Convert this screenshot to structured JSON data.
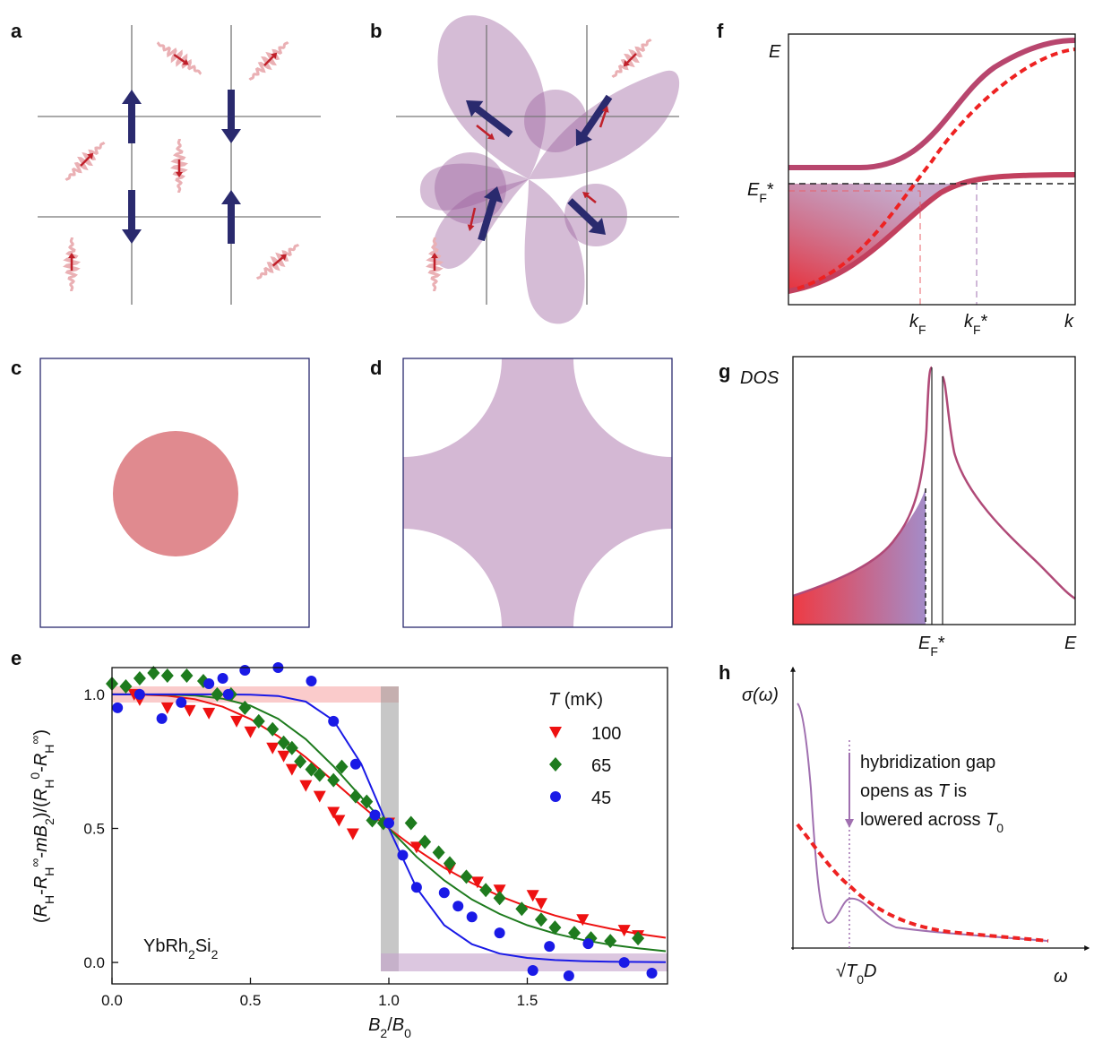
{
  "panel_labels": [
    "a",
    "b",
    "c",
    "d",
    "e",
    "f",
    "g",
    "h"
  ],
  "chart_data": {
    "type": "scatter",
    "x_label": [
      {
        "italic": "B"
      },
      {
        "sub": "2"
      },
      {
        "text": "/"
      },
      {
        "italic": "B"
      },
      {
        "sub": "0"
      }
    ],
    "y_label": [
      {
        "text": "("
      },
      {
        "italic": "R"
      },
      {
        "sub": "H"
      },
      {
        "text": "-"
      },
      {
        "italic": "R"
      },
      {
        "sub": "H"
      },
      {
        "sup": "∞"
      },
      {
        "text": "-"
      },
      {
        "italic": "mB"
      },
      {
        "sub": "2"
      },
      {
        "text": ")/("
      },
      {
        "italic": "R"
      },
      {
        "sub": "H"
      },
      {
        "sup": "0"
      },
      {
        "text": "-"
      },
      {
        "italic": "R"
      },
      {
        "sub": "H"
      },
      {
        "sup": "∞"
      },
      {
        "text": ")"
      }
    ],
    "annotation": [
      {
        "text": "YbRh"
      },
      {
        "sub": "2"
      },
      {
        "text": "Si"
      },
      {
        "sub": "2"
      }
    ],
    "legend_title": [
      {
        "italic": "T"
      },
      {
        "text": " (mK)"
      }
    ],
    "xlim": [
      0,
      2.0
    ],
    "ylim": [
      -0.08,
      1.1
    ],
    "xticks": [
      {
        "value": 0,
        "label": "0.0"
      },
      0.5,
      {
        "value": 1,
        "label": "1.0"
      },
      1.5
    ],
    "yticks": [
      {
        "value": 0,
        "label": "0.0"
      },
      0.5,
      {
        "value": 1,
        "label": "1.0"
      }
    ],
    "series": [
      {
        "name": "100",
        "color": "#ee1111",
        "marker": "triangle-down",
        "x": [
          0.08,
          0.1,
          0.2,
          0.28,
          0.35,
          0.45,
          0.5,
          0.58,
          0.62,
          0.65,
          0.7,
          0.75,
          0.8,
          0.82,
          0.87,
          1.0,
          1.1,
          1.22,
          1.32,
          1.4,
          1.52,
          1.55,
          1.7,
          1.85,
          1.9
        ],
        "values": [
          1.0,
          0.98,
          0.95,
          0.94,
          0.93,
          0.9,
          0.86,
          0.8,
          0.77,
          0.72,
          0.66,
          0.62,
          0.56,
          0.53,
          0.48,
          0.52,
          0.43,
          0.35,
          0.3,
          0.27,
          0.25,
          0.22,
          0.16,
          0.12,
          0.1
        ]
      },
      {
        "name": "65",
        "color": "#1e7b1e",
        "marker": "diamond",
        "x": [
          0.0,
          0.05,
          0.1,
          0.15,
          0.2,
          0.27,
          0.33,
          0.38,
          0.43,
          0.48,
          0.53,
          0.58,
          0.62,
          0.65,
          0.68,
          0.72,
          0.75,
          0.8,
          0.83,
          0.88,
          0.92,
          0.94,
          0.98,
          1.08,
          1.13,
          1.18,
          1.22,
          1.28,
          1.35,
          1.4,
          1.48,
          1.55,
          1.6,
          1.67,
          1.73,
          1.8,
          1.9
        ],
        "values": [
          1.04,
          1.03,
          1.06,
          1.08,
          1.07,
          1.07,
          1.05,
          1.0,
          1.0,
          0.95,
          0.9,
          0.87,
          0.82,
          0.8,
          0.75,
          0.72,
          0.7,
          0.68,
          0.73,
          0.62,
          0.6,
          0.53,
          0.52,
          0.52,
          0.45,
          0.41,
          0.37,
          0.32,
          0.27,
          0.24,
          0.2,
          0.16,
          0.13,
          0.11,
          0.09,
          0.08,
          0.09
        ]
      },
      {
        "name": "45",
        "color": "#1a1ae6",
        "marker": "circle",
        "x": [
          0.02,
          0.1,
          0.18,
          0.25,
          0.35,
          0.4,
          0.42,
          0.48,
          0.6,
          0.72,
          0.8,
          0.88,
          0.95,
          1.0,
          1.05,
          1.1,
          1.2,
          1.25,
          1.3,
          1.4,
          1.52,
          1.58,
          1.65,
          1.72,
          1.85,
          1.95
        ],
        "values": [
          0.95,
          1.0,
          0.91,
          0.97,
          1.04,
          1.06,
          1.0,
          1.09,
          1.1,
          1.05,
          0.9,
          0.74,
          0.55,
          0.52,
          0.4,
          0.28,
          0.26,
          0.21,
          0.17,
          0.11,
          -0.03,
          0.06,
          -0.05,
          0.07,
          0.0,
          -0.04
        ]
      }
    ],
    "fits": [
      {
        "color": "#ee1111",
        "x": [
          0,
          0.1,
          0.2,
          0.3,
          0.4,
          0.5,
          0.6,
          0.7,
          0.8,
          0.9,
          1.0,
          1.1,
          1.2,
          1.3,
          1.4,
          1.5,
          1.6,
          1.7,
          1.8,
          1.9,
          2.0
        ],
        "values": [
          1.0,
          0.9995,
          0.995,
          0.982,
          0.954,
          0.908,
          0.844,
          0.765,
          0.676,
          0.586,
          0.5,
          0.422,
          0.353,
          0.296,
          0.248,
          0.208,
          0.175,
          0.148,
          0.126,
          0.107,
          0.092
        ]
      },
      {
        "color": "#1e7b1e",
        "x": [
          0,
          0.1,
          0.2,
          0.3,
          0.4,
          0.5,
          0.6,
          0.7,
          0.8,
          0.9,
          1.0,
          1.1,
          1.2,
          1.3,
          1.4,
          1.5,
          1.6,
          1.7,
          1.8,
          1.9,
          2.0
        ],
        "values": [
          1.0,
          1.0,
          0.999,
          0.996,
          0.984,
          0.958,
          0.909,
          0.833,
          0.732,
          0.617,
          0.5,
          0.394,
          0.306,
          0.235,
          0.181,
          0.139,
          0.108,
          0.084,
          0.066,
          0.053,
          0.042
        ]
      },
      {
        "color": "#1a1ae6",
        "x": [
          0,
          0.1,
          0.2,
          0.3,
          0.4,
          0.5,
          0.6,
          0.7,
          0.8,
          0.9,
          1.0,
          1.1,
          1.2,
          1.3,
          1.4,
          1.5,
          1.6,
          1.7,
          1.8,
          1.9,
          2.0
        ],
        "values": [
          1.0,
          1.0,
          1.0,
          1.0,
          1.0,
          0.999,
          0.994,
          0.973,
          0.903,
          0.741,
          0.5,
          0.278,
          0.139,
          0.068,
          0.033,
          0.017,
          0.009,
          0.005,
          0.003,
          0.002,
          0.001
        ]
      }
    ]
  },
  "panel_f": {
    "y_label": "E",
    "fermi_label": [
      {
        "italic": "E"
      },
      {
        "sub": "F"
      },
      {
        "text": "*"
      }
    ],
    "kf_label": [
      {
        "italic": "k"
      },
      {
        "sub": "F"
      }
    ],
    "kf_star_label": [
      {
        "italic": "k"
      },
      {
        "sub": "F"
      },
      {
        "text": "*"
      }
    ],
    "x_label": "k"
  },
  "panel_g": {
    "y_label": "DOS",
    "fermi_label": [
      {
        "italic": "E"
      },
      {
        "sub": "F"
      },
      {
        "text": "*"
      }
    ],
    "x_label": "E"
  },
  "panel_h": {
    "y_label": "σ(ω)",
    "note_lines": [
      [
        {
          "text": "hybridization gap"
        }
      ],
      [
        {
          "text": "opens as "
        },
        {
          "italic": "T"
        },
        {
          "text": " is"
        }
      ],
      [
        {
          "text": "lowered across "
        },
        {
          "italic": "T"
        },
        {
          "sub": "0"
        }
      ]
    ],
    "gap_label": [
      {
        "text": "√"
      },
      {
        "italic": "T"
      },
      {
        "sub": "0"
      },
      {
        "italic": "D"
      }
    ],
    "x_label": "ω"
  }
}
